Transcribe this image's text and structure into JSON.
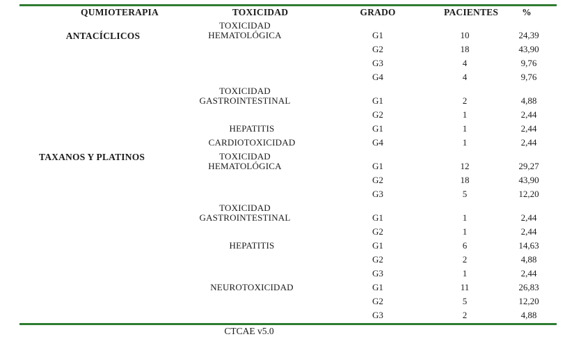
{
  "colors": {
    "rule_green": "#2e7d32",
    "text": "#1b1b1b"
  },
  "header": {
    "chemo": "QUMIOTERAPIA",
    "toxicity": "TOXICIDAD",
    "grade": "GRADO",
    "patients": "PACIENTES",
    "percent": "%"
  },
  "sections": [
    {
      "chemo": "ANTACÍCLICOS",
      "groups": [
        {
          "toxicity_lines": [
            "TOXICIDAD",
            "HEMATOLÓGICA"
          ],
          "rows": [
            {
              "grade": "G1",
              "patients": "10",
              "percent": "24,39"
            },
            {
              "grade": "G2",
              "patients": "18",
              "percent": "43,90"
            },
            {
              "grade": "G3",
              "patients": "4",
              "percent": "9,76"
            },
            {
              "grade": "G4",
              "patients": "4",
              "percent": "9,76"
            }
          ]
        },
        {
          "toxicity_lines": [
            "TOXICIDAD",
            "GASTROINTESTINAL"
          ],
          "rows": [
            {
              "grade": "G1",
              "patients": "2",
              "percent": "4,88"
            },
            {
              "grade": "G2",
              "patients": "1",
              "percent": "2,44"
            }
          ]
        },
        {
          "toxicity_lines": [
            "HEPATITIS"
          ],
          "rows": [
            {
              "grade": "G1",
              "patients": "1",
              "percent": "2,44"
            }
          ]
        },
        {
          "toxicity_lines": [
            "CARDIOTOXICIDAD"
          ],
          "rows": [
            {
              "grade": "G4",
              "patients": "1",
              "percent": "2,44"
            }
          ]
        }
      ]
    },
    {
      "chemo": "TAXANOS Y PLATINOS",
      "groups": [
        {
          "toxicity_lines": [
            "TOXICIDAD",
            "HEMATOLÓGICA"
          ],
          "rows": [
            {
              "grade": "G1",
              "patients": "12",
              "percent": "29,27"
            },
            {
              "grade": "G2",
              "patients": "18",
              "percent": "43,90"
            },
            {
              "grade": "G3",
              "patients": "5",
              "percent": "12,20"
            }
          ]
        },
        {
          "toxicity_lines": [
            "TOXICIDAD",
            "GASTROINTESTINAL"
          ],
          "rows": [
            {
              "grade": "G1",
              "patients": "1",
              "percent": "2,44"
            },
            {
              "grade": "G2",
              "patients": "1",
              "percent": "2,44"
            }
          ]
        },
        {
          "toxicity_lines": [
            "HEPATITIS"
          ],
          "rows": [
            {
              "grade": "G1",
              "patients": "6",
              "percent": "14,63"
            },
            {
              "grade": "G2",
              "patients": "2",
              "percent": "4,88"
            },
            {
              "grade": "G3",
              "patients": "1",
              "percent": "2,44"
            }
          ]
        },
        {
          "toxicity_lines": [
            "NEUROTOXICIDAD"
          ],
          "rows": [
            {
              "grade": "G1",
              "patients": "11",
              "percent": "26,83"
            },
            {
              "grade": "G2",
              "patients": "5",
              "percent": "12,20"
            },
            {
              "grade": "G3",
              "patients": "2",
              "percent": "4,88"
            }
          ]
        }
      ]
    }
  ],
  "footer": {
    "caption": "CTCAE v5.0"
  }
}
